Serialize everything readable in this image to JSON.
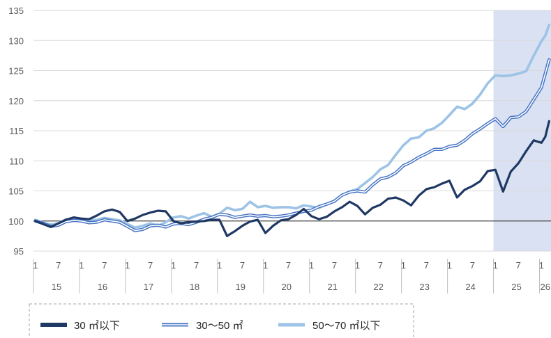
{
  "chart_data": {
    "type": "line",
    "ylim": [
      95,
      135
    ],
    "yticks": [
      95,
      100,
      105,
      110,
      115,
      120,
      125,
      130,
      135
    ],
    "x_range": [
      "2015-01",
      "2026-03"
    ],
    "month_tick_labels": [
      "1",
      "7",
      "1",
      "7",
      "1",
      "7",
      "1",
      "7",
      "1",
      "7",
      "1",
      "7",
      "1",
      "7",
      "1",
      "7",
      "1",
      "7",
      "1",
      "7",
      "1",
      "7",
      "1"
    ],
    "year_labels": [
      "15",
      "16",
      "17",
      "18",
      "19",
      "20",
      "21",
      "22",
      "23",
      "24",
      "25",
      "26"
    ],
    "highlight_range": [
      "2025-01",
      "2026-03"
    ],
    "reference_line": 100,
    "grid": true,
    "legend_position": "bottom",
    "colors": {
      "s30": "#1f3864",
      "s3050": "#4472c4",
      "s5070": "#9dc3e6",
      "highlight": "#d9e1f2"
    },
    "series": [
      {
        "name": "30 ㎡以下",
        "key": "s30",
        "knots": [
          [
            "2015-01",
            100.0
          ],
          [
            "2015-03",
            99.5
          ],
          [
            "2015-05",
            99.0
          ],
          [
            "2015-07",
            99.6
          ],
          [
            "2015-09",
            100.2
          ],
          [
            "2015-11",
            100.6
          ],
          [
            "2016-01",
            100.4
          ],
          [
            "2016-03",
            100.3
          ],
          [
            "2016-05",
            100.9
          ],
          [
            "2016-07",
            101.6
          ],
          [
            "2016-09",
            101.9
          ],
          [
            "2016-11",
            101.5
          ],
          [
            "2017-01",
            100.0
          ],
          [
            "2017-03",
            100.4
          ],
          [
            "2017-05",
            101.0
          ],
          [
            "2017-07",
            101.4
          ],
          [
            "2017-09",
            101.7
          ],
          [
            "2017-11",
            101.6
          ],
          [
            "2018-01",
            100.0
          ],
          [
            "2018-03",
            99.6
          ],
          [
            "2018-05",
            99.8
          ],
          [
            "2018-07",
            99.9
          ],
          [
            "2018-09",
            100.0
          ],
          [
            "2018-11",
            100.2
          ],
          [
            "2019-01",
            100.2
          ],
          [
            "2019-03",
            97.5
          ],
          [
            "2019-05",
            98.3
          ],
          [
            "2019-07",
            99.2
          ],
          [
            "2019-09",
            99.9
          ],
          [
            "2019-11",
            100.2
          ],
          [
            "2020-01",
            98.0
          ],
          [
            "2020-03",
            99.2
          ],
          [
            "2020-05",
            100.1
          ],
          [
            "2020-07",
            100.3
          ],
          [
            "2020-09",
            101.0
          ],
          [
            "2020-11",
            102.0
          ],
          [
            "2021-01",
            100.8
          ],
          [
            "2021-03",
            100.3
          ],
          [
            "2021-05",
            100.7
          ],
          [
            "2021-07",
            101.6
          ],
          [
            "2021-09",
            102.3
          ],
          [
            "2021-11",
            103.2
          ],
          [
            "2022-01",
            102.5
          ],
          [
            "2022-03",
            101.1
          ],
          [
            "2022-05",
            102.2
          ],
          [
            "2022-07",
            102.7
          ],
          [
            "2022-09",
            103.7
          ],
          [
            "2022-11",
            103.9
          ],
          [
            "2023-01",
            103.4
          ],
          [
            "2023-03",
            102.6
          ],
          [
            "2023-05",
            104.2
          ],
          [
            "2023-07",
            105.3
          ],
          [
            "2023-09",
            105.6
          ],
          [
            "2023-11",
            106.2
          ],
          [
            "2024-01",
            106.7
          ],
          [
            "2024-03",
            103.9
          ],
          [
            "2024-05",
            105.2
          ],
          [
            "2024-07",
            105.8
          ],
          [
            "2024-09",
            106.6
          ],
          [
            "2024-11",
            108.3
          ],
          [
            "2025-01",
            108.5
          ],
          [
            "2025-03",
            104.9
          ],
          [
            "2025-05",
            108.2
          ],
          [
            "2025-07",
            109.6
          ],
          [
            "2025-09",
            111.6
          ],
          [
            "2025-11",
            113.4
          ],
          [
            "2026-01",
            113.0
          ],
          [
            "2026-02",
            114.0
          ],
          [
            "2026-03",
            116.6
          ]
        ]
      },
      {
        "name": "30～50 ㎡",
        "key": "s3050",
        "knots": [
          [
            "2015-01",
            100.0
          ],
          [
            "2015-03",
            99.6
          ],
          [
            "2015-05",
            99.1
          ],
          [
            "2015-07",
            99.3
          ],
          [
            "2015-09",
            99.9
          ],
          [
            "2015-11",
            100.1
          ],
          [
            "2016-01",
            100.0
          ],
          [
            "2016-03",
            99.7
          ],
          [
            "2016-05",
            99.8
          ],
          [
            "2016-07",
            100.2
          ],
          [
            "2016-09",
            100.0
          ],
          [
            "2016-11",
            99.8
          ],
          [
            "2017-01",
            99.1
          ],
          [
            "2017-03",
            98.4
          ],
          [
            "2017-05",
            98.6
          ],
          [
            "2017-07",
            99.2
          ],
          [
            "2017-09",
            99.3
          ],
          [
            "2017-11",
            99.0
          ],
          [
            "2018-01",
            99.5
          ],
          [
            "2018-03",
            99.6
          ],
          [
            "2018-05",
            99.4
          ],
          [
            "2018-07",
            99.8
          ],
          [
            "2018-09",
            100.3
          ],
          [
            "2018-11",
            100.6
          ],
          [
            "2019-01",
            101.1
          ],
          [
            "2019-03",
            101.0
          ],
          [
            "2019-05",
            100.6
          ],
          [
            "2019-07",
            100.8
          ],
          [
            "2019-09",
            101.0
          ],
          [
            "2019-11",
            100.8
          ],
          [
            "2020-01",
            100.9
          ],
          [
            "2020-03",
            100.7
          ],
          [
            "2020-05",
            100.8
          ],
          [
            "2020-07",
            101.0
          ],
          [
            "2020-09",
            101.3
          ],
          [
            "2020-11",
            101.6
          ],
          [
            "2021-01",
            101.8
          ],
          [
            "2021-03",
            102.4
          ],
          [
            "2021-05",
            102.8
          ],
          [
            "2021-07",
            103.3
          ],
          [
            "2021-09",
            104.3
          ],
          [
            "2021-11",
            104.8
          ],
          [
            "2022-01",
            105.0
          ],
          [
            "2022-03",
            104.8
          ],
          [
            "2022-05",
            106.0
          ],
          [
            "2022-07",
            107.0
          ],
          [
            "2022-09",
            107.3
          ],
          [
            "2022-11",
            108.0
          ],
          [
            "2023-01",
            109.2
          ],
          [
            "2023-03",
            109.8
          ],
          [
            "2023-05",
            110.6
          ],
          [
            "2023-07",
            111.2
          ],
          [
            "2023-09",
            111.9
          ],
          [
            "2023-11",
            111.9
          ],
          [
            "2024-01",
            112.4
          ],
          [
            "2024-03",
            112.6
          ],
          [
            "2024-05",
            113.4
          ],
          [
            "2024-07",
            114.5
          ],
          [
            "2024-09",
            115.3
          ],
          [
            "2024-11",
            116.2
          ],
          [
            "2025-01",
            117.0
          ],
          [
            "2025-03",
            115.7
          ],
          [
            "2025-05",
            117.2
          ],
          [
            "2025-07",
            117.3
          ],
          [
            "2025-09",
            118.2
          ],
          [
            "2025-11",
            120.2
          ],
          [
            "2026-01",
            122.2
          ],
          [
            "2026-02",
            124.5
          ],
          [
            "2026-03",
            126.8
          ]
        ]
      },
      {
        "name": "50～70 ㎡以下",
        "key": "s5070",
        "knots": [
          [
            "2015-01",
            100.2
          ],
          [
            "2015-03",
            99.7
          ],
          [
            "2015-05",
            99.4
          ],
          [
            "2015-07",
            99.6
          ],
          [
            "2015-09",
            100.3
          ],
          [
            "2015-11",
            100.2
          ],
          [
            "2016-01",
            100.4
          ],
          [
            "2016-03",
            100.1
          ],
          [
            "2016-05",
            100.2
          ],
          [
            "2016-07",
            100.5
          ],
          [
            "2016-09",
            100.3
          ],
          [
            "2016-11",
            100.1
          ],
          [
            "2017-01",
            99.5
          ],
          [
            "2017-03",
            98.9
          ],
          [
            "2017-05",
            99.2
          ],
          [
            "2017-07",
            99.6
          ],
          [
            "2017-09",
            99.2
          ],
          [
            "2017-11",
            99.8
          ],
          [
            "2018-01",
            100.6
          ],
          [
            "2018-03",
            100.8
          ],
          [
            "2018-05",
            100.4
          ],
          [
            "2018-07",
            100.9
          ],
          [
            "2018-09",
            101.3
          ],
          [
            "2018-11",
            100.7
          ],
          [
            "2019-01",
            101.2
          ],
          [
            "2019-03",
            102.2
          ],
          [
            "2019-05",
            101.8
          ],
          [
            "2019-07",
            102.0
          ],
          [
            "2019-09",
            103.2
          ],
          [
            "2019-11",
            102.3
          ],
          [
            "2020-01",
            102.5
          ],
          [
            "2020-03",
            102.2
          ],
          [
            "2020-05",
            102.3
          ],
          [
            "2020-07",
            102.3
          ],
          [
            "2020-09",
            102.1
          ],
          [
            "2020-11",
            102.6
          ],
          [
            "2021-01",
            102.4
          ],
          [
            "2021-03",
            102.2
          ],
          [
            "2021-05",
            102.8
          ],
          [
            "2021-07",
            103.2
          ],
          [
            "2021-09",
            104.3
          ],
          [
            "2021-11",
            104.9
          ],
          [
            "2022-01",
            105.3
          ],
          [
            "2022-03",
            106.3
          ],
          [
            "2022-05",
            107.3
          ],
          [
            "2022-07",
            108.6
          ],
          [
            "2022-09",
            109.3
          ],
          [
            "2022-11",
            111.0
          ],
          [
            "2023-01",
            112.6
          ],
          [
            "2023-03",
            113.7
          ],
          [
            "2023-05",
            113.9
          ],
          [
            "2023-07",
            115.0
          ],
          [
            "2023-09",
            115.4
          ],
          [
            "2023-11",
            116.3
          ],
          [
            "2024-01",
            117.6
          ],
          [
            "2024-03",
            119.0
          ],
          [
            "2024-05",
            118.6
          ],
          [
            "2024-07",
            119.5
          ],
          [
            "2024-09",
            121.0
          ],
          [
            "2024-11",
            122.9
          ],
          [
            "2025-01",
            124.2
          ],
          [
            "2025-03",
            124.1
          ],
          [
            "2025-05",
            124.2
          ],
          [
            "2025-07",
            124.5
          ],
          [
            "2025-09",
            124.9
          ],
          [
            "2025-11",
            127.5
          ],
          [
            "2026-01",
            129.9
          ],
          [
            "2026-02",
            130.8
          ],
          [
            "2026-03",
            132.6
          ]
        ]
      }
    ]
  }
}
